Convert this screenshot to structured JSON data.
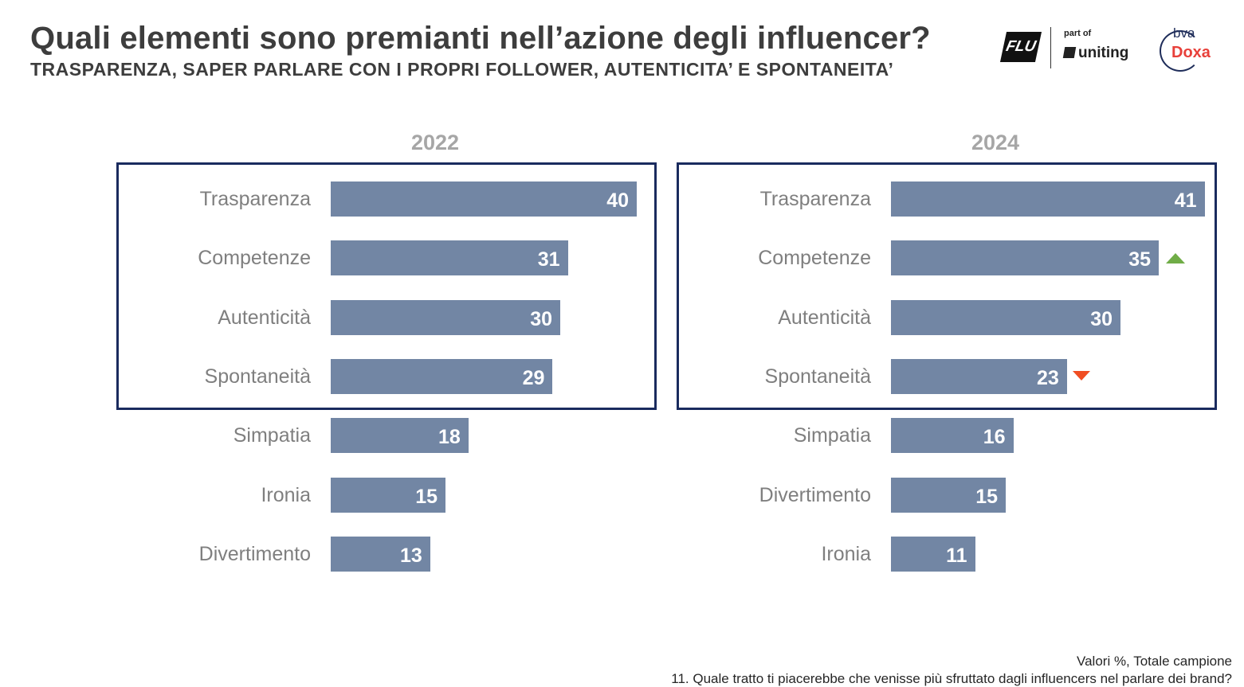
{
  "header": {
    "title": "Quali elementi sono premianti nell’azione degli influencer?",
    "subtitle": "TRASPARENZA, SAPER PARLARE CON I PROPRI FOLLOWER, AUTENTICITA’ E SPONTANEITA’"
  },
  "logos": {
    "flu": "FLU",
    "part_of": "part of",
    "uniting": "uniting",
    "bva": "bva",
    "doxa": "Doxa"
  },
  "chart_data": [
    {
      "type": "bar",
      "orientation": "horizontal",
      "title": "2022",
      "categories": [
        "Trasparenza",
        "Competenze",
        "Autenticità",
        "Spontaneità",
        "Simpatia",
        "Ironia",
        "Divertimento"
      ],
      "values": [
        40,
        31,
        30,
        29,
        18,
        15,
        13
      ],
      "highlighted_count": 4,
      "bar_color": "#7286a4",
      "changes": [
        null,
        null,
        null,
        null,
        null,
        null,
        null
      ]
    },
    {
      "type": "bar",
      "orientation": "horizontal",
      "title": "2024",
      "categories": [
        "Trasparenza",
        "Competenze",
        "Autenticità",
        "Spontaneità",
        "Simpatia",
        "Divertimento",
        "Ironia"
      ],
      "values": [
        41,
        35,
        30,
        23,
        16,
        15,
        11
      ],
      "highlighted_count": 4,
      "bar_color": "#7286a4",
      "changes": [
        null,
        "up",
        null,
        "down",
        null,
        null,
        null
      ]
    }
  ],
  "colors": {
    "up": "#70ad47",
    "down": "#f04e23",
    "frame": "#1a2b5e"
  },
  "footer": {
    "note": "Valori %, Totale campione",
    "question": "11. Quale tratto ti piacerebbe che venisse più sfruttato dagli influencers nel parlare dei brand?"
  }
}
